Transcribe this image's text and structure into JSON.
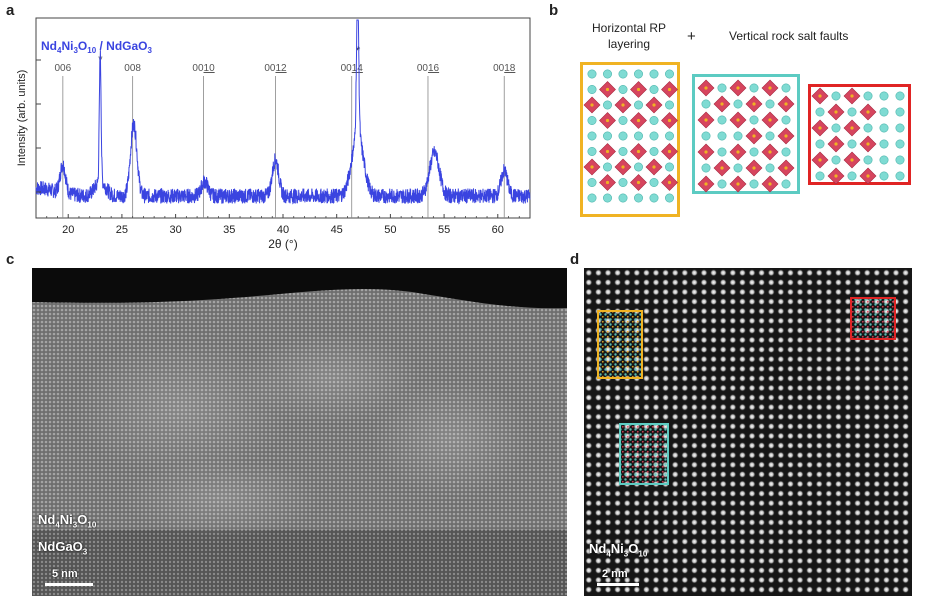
{
  "panels": {
    "a": "a",
    "b": "b",
    "c": "c",
    "d": "d"
  },
  "panel_a": {
    "legend_base1": "Nd",
    "legend_sub1": "4",
    "legend_base2": "Ni",
    "legend_sub2": "3",
    "legend_base3": "O",
    "legend_sub3": "10",
    "legend_sep": " / NdGaO",
    "legend_sub4": "3",
    "series_color": "#3a44e0"
  },
  "chart_data": {
    "type": "line",
    "title": "Nd4Ni3O10 / NdGaO3",
    "xlabel": "2θ (°)",
    "ylabel": "Intensity (arb. units)",
    "xlim": [
      17,
      63
    ],
    "xticks": [
      "20",
      "25",
      "30",
      "35",
      "40",
      "45",
      "50",
      "55",
      "60"
    ],
    "xtick_values": [
      20,
      25,
      30,
      35,
      40,
      45,
      50,
      55,
      60
    ],
    "yscale": "log",
    "reflections": [
      {
        "x": 19.5,
        "prefix": "00",
        "index": "6",
        "underline": false
      },
      {
        "x": 26.0,
        "prefix": "00",
        "index": "8",
        "underline": false
      },
      {
        "x": 32.6,
        "prefix": "00",
        "index": "10",
        "underline": true
      },
      {
        "x": 39.3,
        "prefix": "00",
        "index": "12",
        "underline": true
      },
      {
        "x": 46.4,
        "prefix": "00",
        "index": "14",
        "underline": true
      },
      {
        "x": 53.5,
        "prefix": "00",
        "index": "16",
        "underline": true
      },
      {
        "x": 60.6,
        "prefix": "00",
        "index": "18",
        "underline": true
      }
    ],
    "substrate_peaks": [
      {
        "x": 23.0,
        "marker": "*"
      },
      {
        "x": 47.0,
        "marker": "*"
      }
    ],
    "peaks_log": [
      {
        "x": 19.5,
        "w": 0.25,
        "h": 0.8
      },
      {
        "x": 22.98,
        "w": 0.08,
        "h": 3.6
      },
      {
        "x": 23.0,
        "w": 0.5,
        "h": 0.4
      },
      {
        "x": 26.1,
        "w": 0.3,
        "h": 2.0
      },
      {
        "x": 32.7,
        "w": 0.3,
        "h": 0.4
      },
      {
        "x": 39.3,
        "w": 0.3,
        "h": 1.0
      },
      {
        "x": 46.95,
        "w": 0.1,
        "h": 4.2
      },
      {
        "x": 46.95,
        "w": 0.55,
        "h": 1.7
      },
      {
        "x": 54.1,
        "w": 0.45,
        "h": 1.2
      },
      {
        "x": 60.6,
        "w": 0.3,
        "h": 0.7
      }
    ]
  },
  "panel_b": {
    "label_left_line1": "Horizontal RP",
    "label_left_line2": "layering",
    "plus": "+",
    "label_right": "Vertical rock salt faults",
    "box_colors": [
      "#f0b323",
      "#5ccbc2",
      "#e02424"
    ]
  },
  "panel_c": {
    "film_base1": "Nd",
    "film_sub1": "4",
    "film_base2": "Ni",
    "film_sub2": "3",
    "film_base3": "O",
    "film_sub3": "10",
    "substrate_base": "NdGaO",
    "substrate_sub": "3",
    "scale_label": "5 nm"
  },
  "panel_d": {
    "film_base1": "Nd",
    "film_sub1": "4",
    "film_base2": "Ni",
    "film_sub2": "3",
    "film_base3": "O",
    "film_sub3": "10",
    "scale_label": "2 nm",
    "overlay_colors": [
      "#f0b323",
      "#5ccbc2",
      "#e02424"
    ]
  }
}
